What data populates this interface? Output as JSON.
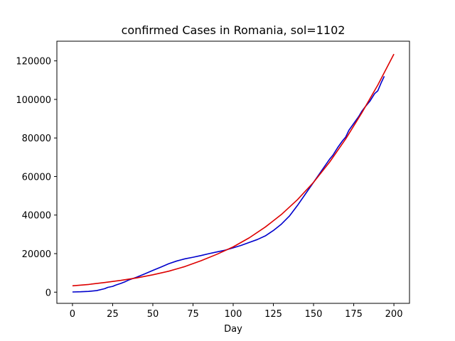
{
  "chart_data": {
    "type": "line",
    "title": "confirmed Cases in Romania, sol=1102",
    "xlabel": "Day",
    "ylabel": "",
    "xlim": [
      -9.7,
      209.7
    ],
    "ylim": [
      -5800,
      130200
    ],
    "x_ticks": [
      0,
      25,
      50,
      75,
      100,
      125,
      150,
      175,
      200
    ],
    "x_tick_labels": [
      "0",
      "25",
      "50",
      "75",
      "100",
      "125",
      "150",
      "175",
      "200"
    ],
    "y_ticks": [
      0,
      20000,
      40000,
      60000,
      80000,
      100000,
      120000
    ],
    "y_tick_labels": [
      "0",
      "20000",
      "40000",
      "60000",
      "80000",
      "100000",
      "120000"
    ],
    "grid": false,
    "series": [
      {
        "color": "#0000cc",
        "points": [
          [
            0,
            100
          ],
          [
            5,
            200
          ],
          [
            10,
            400
          ],
          [
            15,
            800
          ],
          [
            20,
            1800
          ],
          [
            22,
            2500
          ],
          [
            25,
            3000
          ],
          [
            27,
            3700
          ],
          [
            30,
            4500
          ],
          [
            33,
            5500
          ],
          [
            35,
            6300
          ],
          [
            40,
            7800
          ],
          [
            45,
            9500
          ],
          [
            50,
            11300
          ],
          [
            55,
            13000
          ],
          [
            60,
            14800
          ],
          [
            65,
            16200
          ],
          [
            70,
            17300
          ],
          [
            75,
            18100
          ],
          [
            80,
            19000
          ],
          [
            85,
            20000
          ],
          [
            90,
            20900
          ],
          [
            95,
            21800
          ],
          [
            100,
            23000
          ],
          [
            105,
            24300
          ],
          [
            110,
            25800
          ],
          [
            115,
            27300
          ],
          [
            120,
            29200
          ],
          [
            125,
            32000
          ],
          [
            130,
            35300
          ],
          [
            135,
            39500
          ],
          [
            140,
            45000
          ],
          [
            145,
            51000
          ],
          [
            150,
            57000
          ],
          [
            155,
            63000
          ],
          [
            160,
            69000
          ],
          [
            162,
            71000
          ],
          [
            165,
            75000
          ],
          [
            168,
            78500
          ],
          [
            170,
            80500
          ],
          [
            172,
            84000
          ],
          [
            175,
            87500
          ],
          [
            178,
            91000
          ],
          [
            180,
            93800
          ],
          [
            182,
            96000
          ],
          [
            185,
            99000
          ],
          [
            188,
            103000
          ],
          [
            190,
            104500
          ],
          [
            192,
            108500
          ],
          [
            194,
            112000
          ]
        ]
      },
      {
        "color": "#dd0000",
        "points": [
          [
            0,
            3300
          ],
          [
            10,
            4000
          ],
          [
            20,
            5000
          ],
          [
            30,
            6100
          ],
          [
            40,
            7400
          ],
          [
            50,
            9000
          ],
          [
            60,
            10900
          ],
          [
            70,
            13300
          ],
          [
            80,
            16300
          ],
          [
            90,
            19700
          ],
          [
            100,
            23500
          ],
          [
            110,
            28200
          ],
          [
            120,
            33800
          ],
          [
            130,
            40300
          ],
          [
            140,
            48000
          ],
          [
            150,
            57000
          ],
          [
            160,
            67500
          ],
          [
            170,
            79500
          ],
          [
            180,
            93000
          ],
          [
            190,
            107500
          ],
          [
            200,
            123500
          ]
        ]
      }
    ]
  }
}
